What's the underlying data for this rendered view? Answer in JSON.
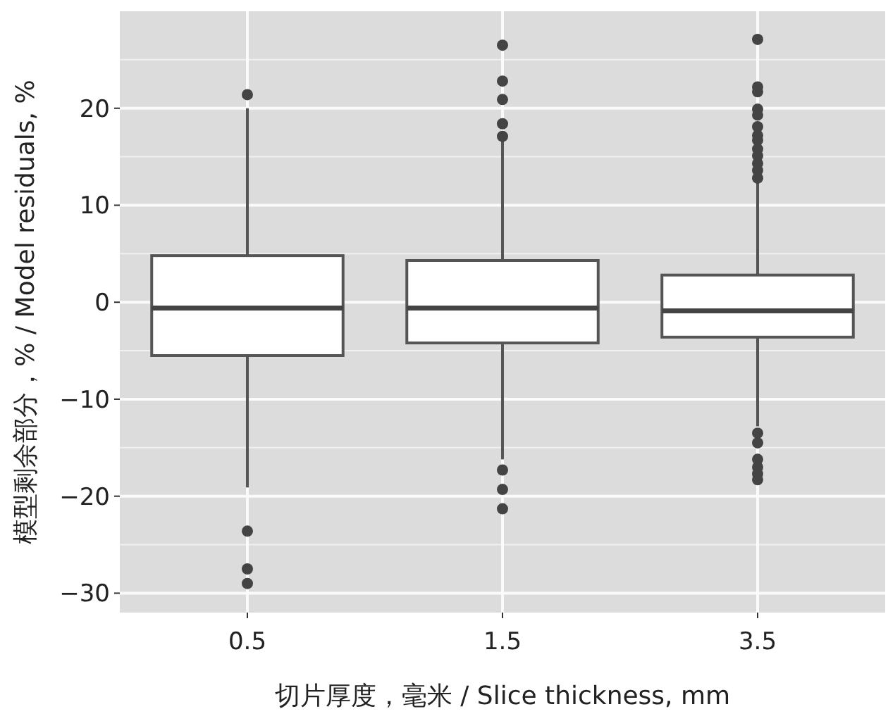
{
  "chart_data": {
    "type": "box",
    "xlabel": "切片厚度，毫米 / Slice thickness, mm",
    "ylabel": "模型剩余部分，% / Model residuals, %",
    "categories": [
      "0.5",
      "1.5",
      "3.5"
    ],
    "boxes": [
      {
        "low": -19.1,
        "q1": -5.5,
        "median": -0.6,
        "q3": 4.8,
        "high": 20,
        "outliers": [
          21.4,
          -23.6,
          -27.5,
          -29
        ]
      },
      {
        "low": -16.2,
        "q1": -4.2,
        "median": -0.6,
        "q3": 4.3,
        "high": 16.7,
        "outliers": [
          26.5,
          22.8,
          20.9,
          18.4,
          17.1,
          -17.3,
          -19.3,
          -21.3
        ]
      },
      {
        "low": -12.8,
        "q1": -3.6,
        "median": -0.9,
        "q3": 2.8,
        "high": 12.5,
        "outliers": [
          27.1,
          22.2,
          21.7,
          19.9,
          19.3,
          18.1,
          17.2,
          16.7,
          15.8,
          15.1,
          14.3,
          13.6,
          12.8,
          -13.5,
          -14.5,
          -16.2,
          -17,
          -17.7,
          -18.3
        ]
      }
    ],
    "ylim": [
      -32,
      30
    ],
    "yticks": [
      -30,
      -20,
      -10,
      0,
      10,
      20
    ],
    "grid": true
  }
}
